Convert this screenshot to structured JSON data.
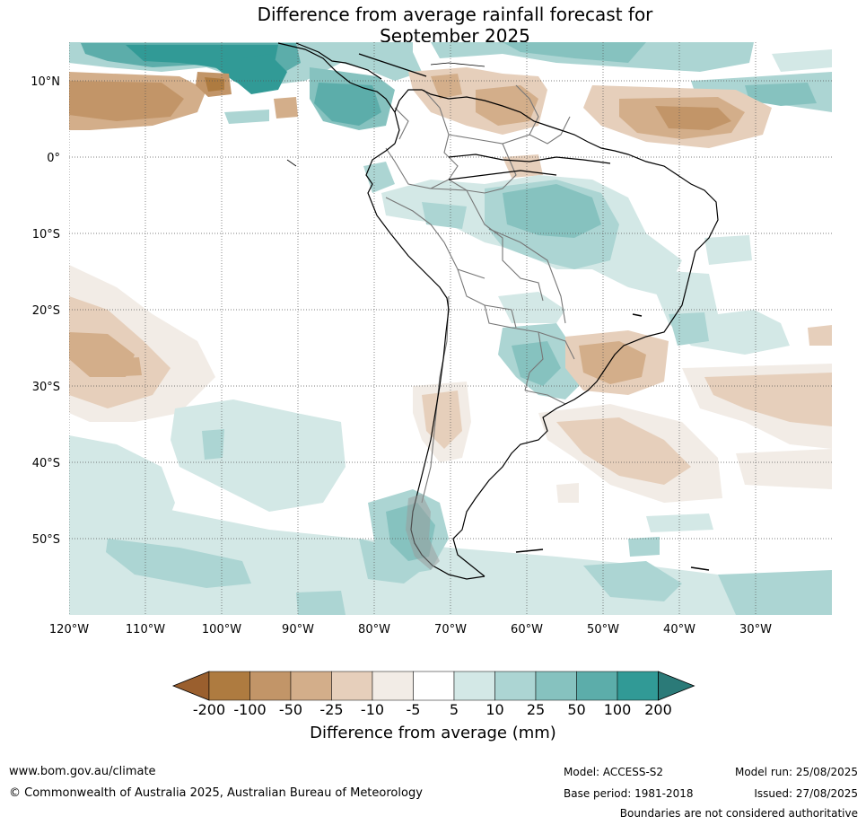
{
  "title": {
    "line1": "Difference from average rainfall forecast for",
    "line2": "September 2025"
  },
  "map": {
    "lat_labels": [
      "10°N",
      "0°",
      "10°S",
      "20°S",
      "30°S",
      "40°S",
      "50°S"
    ],
    "lon_labels": [
      "120°W",
      "110°W",
      "100°W",
      "90°W",
      "80°W",
      "70°W",
      "60°W",
      "50°W",
      "40°W",
      "30°W"
    ],
    "lat_range": [
      -60,
      15
    ],
    "lon_range": [
      -120,
      -20
    ]
  },
  "colorbar": {
    "title": "Difference from average (mm)",
    "tick_labels": [
      "-200",
      "-100",
      "-50",
      "-25",
      "-10",
      "-5",
      "5",
      "10",
      "25",
      "50",
      "100",
      "200"
    ],
    "colors": [
      "#9a5f2e",
      "#ae7b40",
      "#c29568",
      "#d3ae8a",
      "#e6cfbb",
      "#f2ece6",
      "#ffffff",
      "#d3e8e6",
      "#acd5d3",
      "#86c2bf",
      "#5cadaa",
      "#319a96",
      "#2b7a78"
    ]
  },
  "footer": {
    "url": "www.bom.gov.au/climate",
    "copyright": "© Commonwealth of Australia 2025, Australian Bureau of Meteorology",
    "model": "Model: ACCESS-S2",
    "base_period": "Base period: 1981-2018",
    "model_run": "Model run: 25/08/2025",
    "issued": "Issued: 27/08/2025",
    "disclaimer": "Boundaries are not considered authoritative"
  }
}
